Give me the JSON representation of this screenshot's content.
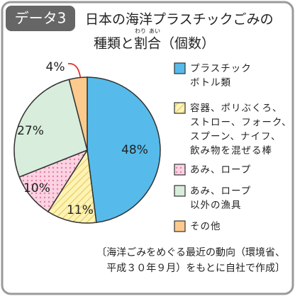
{
  "badge": "データ3",
  "chart_data": {
    "type": "pie",
    "title": [
      "日本の海洋プラスチックごみの",
      "種類と割合（個数）"
    ],
    "annotations": [
      "わり",
      "あい"
    ],
    "categories": [
      "プラスチック\nボトル類",
      "容器、ポリぶくろ、\nストロー、フォーク、\nスプーン、ナイフ、\n飲み物を混ぜる棒",
      "あみ、ロープ",
      "あみ、ロープ\n以外の漁具",
      "その他"
    ],
    "values": [
      48,
      11,
      10,
      27,
      4
    ],
    "value_labels": [
      "48%",
      "11%",
      "10%",
      "27%",
      "4%"
    ],
    "colors": [
      "#56bbea",
      "#fdf3b4",
      "#fbd3e2",
      "#d8eddb",
      "#fcca8c"
    ],
    "patterns": [
      "none",
      "hatch",
      "dots",
      "none",
      "none"
    ]
  },
  "source": "〔海洋ごみをめぐる最近の動向（環境省、\n平成３０年９月）をもとに自社で作成〕"
}
